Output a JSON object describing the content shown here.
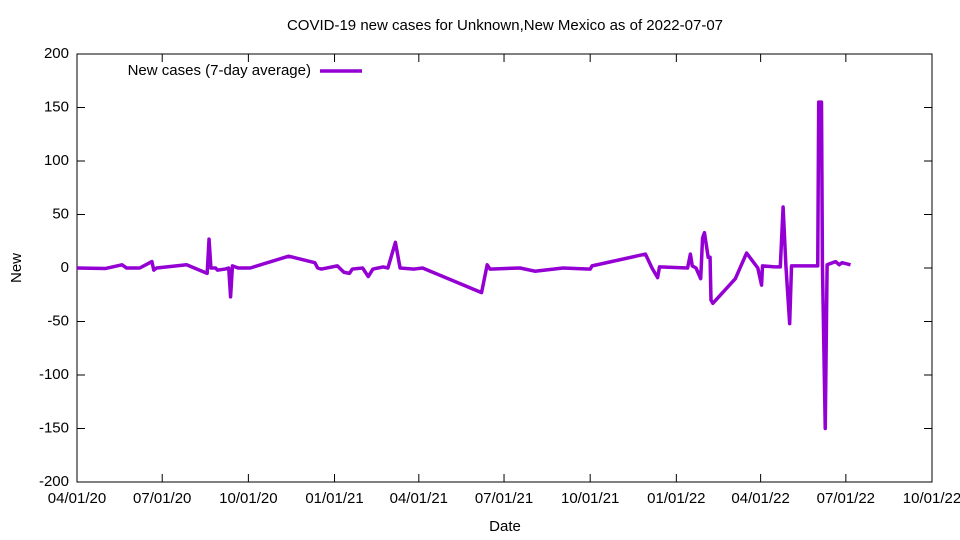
{
  "chart_data": {
    "type": "line",
    "title": "COVID-19 new cases for Unknown,New Mexico as of 2022-07-07",
    "x_label": "Date",
    "y_label": "New",
    "legend_position": "top-left",
    "x": [
      "2020-04-01",
      "2020-05-01",
      "2020-05-19",
      "2020-05-24",
      "2020-06-07",
      "2020-06-20",
      "2020-06-22",
      "2020-06-25",
      "2020-07-27",
      "2020-08-18",
      "2020-08-20",
      "2020-08-22",
      "2020-08-27",
      "2020-08-29",
      "2020-09-06",
      "2020-09-10",
      "2020-09-12",
      "2020-09-14",
      "2020-09-20",
      "2020-10-03",
      "2020-11-13",
      "2020-12-11",
      "2020-12-14",
      "2020-12-18",
      "2021-01-04",
      "2021-01-11",
      "2021-01-17",
      "2021-01-20",
      "2021-01-31",
      "2021-02-06",
      "2021-02-11",
      "2021-02-22",
      "2021-02-27",
      "2021-03-07",
      "2021-03-12",
      "2021-03-27",
      "2021-04-05",
      "2021-06-07",
      "2021-06-13",
      "2021-06-16",
      "2021-07-18",
      "2021-08-03",
      "2021-09-02",
      "2021-10-01",
      "2021-10-03",
      "2021-11-29",
      "2021-12-06",
      "2021-12-12",
      "2021-12-14",
      "2022-01-13",
      "2022-01-16",
      "2022-01-18",
      "2022-01-22",
      "2022-01-27",
      "2022-01-29",
      "2022-01-31",
      "2022-02-04",
      "2022-02-06",
      "2022-02-07",
      "2022-02-09",
      "2022-03-05",
      "2022-03-17",
      "2022-03-29",
      "2022-04-02",
      "2022-04-03",
      "2022-04-16",
      "2022-04-22",
      "2022-04-25",
      "2022-04-28",
      "2022-05-02",
      "2022-05-04",
      "2022-05-13",
      "2022-06-01",
      "2022-06-02",
      "2022-06-05",
      "2022-06-06",
      "2022-06-09",
      "2022-06-11",
      "2022-06-20",
      "2022-06-24",
      "2022-06-27",
      "2022-07-06"
    ],
    "series": [
      {
        "name": "New cases (7-day average)",
        "color": "#9400d3",
        "values": [
          0,
          -0.5,
          3,
          0,
          0,
          6,
          -2,
          0,
          3,
          -5,
          27,
          0,
          0,
          -2,
          -1,
          0,
          -27,
          2,
          0,
          0,
          11,
          5,
          0,
          -1,
          2,
          -4,
          -5,
          -1,
          0,
          -8,
          -1,
          1,
          0,
          24,
          0,
          -1,
          0,
          -23,
          3,
          -1,
          0,
          -3,
          0,
          -1,
          2,
          13,
          0,
          -9,
          1,
          0,
          13,
          2,
          0,
          -10,
          28,
          33,
          10,
          10,
          -30,
          -33,
          -10,
          14,
          0,
          -16,
          2,
          1,
          1,
          57,
          2,
          -52,
          2,
          2,
          2,
          155,
          155,
          3,
          -150,
          3,
          6,
          3,
          5,
          3
        ]
      }
    ],
    "xlim": [
      "2020-04-01",
      "2022-10-01"
    ],
    "xticks": [
      {
        "value": "2020-04-01",
        "label": "04/01/20"
      },
      {
        "value": "2020-07-01",
        "label": "07/01/20"
      },
      {
        "value": "2020-10-01",
        "label": "10/01/20"
      },
      {
        "value": "2021-01-01",
        "label": "01/01/21"
      },
      {
        "value": "2021-04-01",
        "label": "04/01/21"
      },
      {
        "value": "2021-07-01",
        "label": "07/01/21"
      },
      {
        "value": "2021-10-01",
        "label": "10/01/21"
      },
      {
        "value": "2022-01-01",
        "label": "01/01/22"
      },
      {
        "value": "2022-04-01",
        "label": "04/01/22"
      },
      {
        "value": "2022-07-01",
        "label": "07/01/22"
      },
      {
        "value": "2022-10-01",
        "label": "10/01/22"
      }
    ],
    "ylim": [
      -200,
      200
    ],
    "yticks": [
      -200,
      -150,
      -100,
      -50,
      0,
      50,
      100,
      150,
      200
    ]
  }
}
